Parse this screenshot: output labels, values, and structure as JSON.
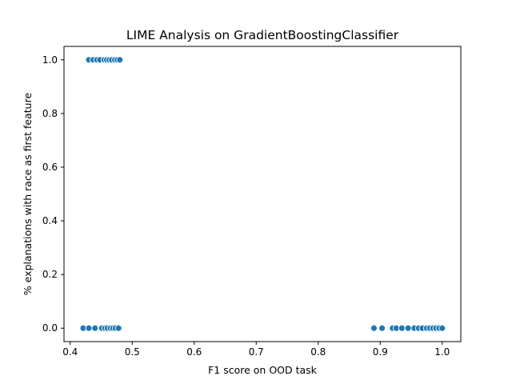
{
  "chart_data": {
    "type": "scatter",
    "title": "LIME Analysis on GradientBoostingClassifier",
    "xlabel": "F1 score on OOD task",
    "ylabel": "% explanations with race as first feature",
    "xlim": [
      0.39,
      1.03
    ],
    "ylim": [
      -0.05,
      1.05
    ],
    "xticks": [
      0.4,
      0.5,
      0.6,
      0.7,
      0.8,
      0.9,
      1.0
    ],
    "xtick_labels": [
      "0.4",
      "0.5",
      "0.6",
      "0.7",
      "0.8",
      "0.9",
      "1.0"
    ],
    "yticks": [
      0.0,
      0.2,
      0.4,
      0.6,
      0.8,
      1.0
    ],
    "ytick_labels": [
      "0.0",
      "0.2",
      "0.4",
      "0.6",
      "0.8",
      "1.0"
    ],
    "grid": false,
    "marker_color": "#1f77b4",
    "points": [
      {
        "x": 0.43,
        "y": 1.0
      },
      {
        "x": 0.437,
        "y": 1.0
      },
      {
        "x": 0.443,
        "y": 1.0
      },
      {
        "x": 0.448,
        "y": 1.0
      },
      {
        "x": 0.455,
        "y": 1.0
      },
      {
        "x": 0.459,
        "y": 1.0
      },
      {
        "x": 0.463,
        "y": 1.0
      },
      {
        "x": 0.467,
        "y": 1.0
      },
      {
        "x": 0.472,
        "y": 1.0
      },
      {
        "x": 0.476,
        "y": 1.0
      },
      {
        "x": 0.48,
        "y": 1.0
      },
      {
        "x": 0.421,
        "y": 0.0
      },
      {
        "x": 0.43,
        "y": 0.0
      },
      {
        "x": 0.44,
        "y": 0.0
      },
      {
        "x": 0.451,
        "y": 0.0
      },
      {
        "x": 0.456,
        "y": 0.0
      },
      {
        "x": 0.46,
        "y": 0.0
      },
      {
        "x": 0.465,
        "y": 0.0
      },
      {
        "x": 0.469,
        "y": 0.0
      },
      {
        "x": 0.473,
        "y": 0.0
      },
      {
        "x": 0.478,
        "y": 0.0
      },
      {
        "x": 0.89,
        "y": 0.0
      },
      {
        "x": 0.903,
        "y": 0.0
      },
      {
        "x": 0.92,
        "y": 0.0
      },
      {
        "x": 0.926,
        "y": 0.0
      },
      {
        "x": 0.935,
        "y": 0.0
      },
      {
        "x": 0.945,
        "y": 0.0
      },
      {
        "x": 0.955,
        "y": 0.0
      },
      {
        "x": 0.962,
        "y": 0.0
      },
      {
        "x": 0.968,
        "y": 0.0
      },
      {
        "x": 0.975,
        "y": 0.0
      },
      {
        "x": 0.98,
        "y": 0.0
      },
      {
        "x": 0.985,
        "y": 0.0
      },
      {
        "x": 0.99,
        "y": 0.0
      },
      {
        "x": 0.995,
        "y": 0.0
      },
      {
        "x": 1.0,
        "y": 0.0
      }
    ]
  }
}
